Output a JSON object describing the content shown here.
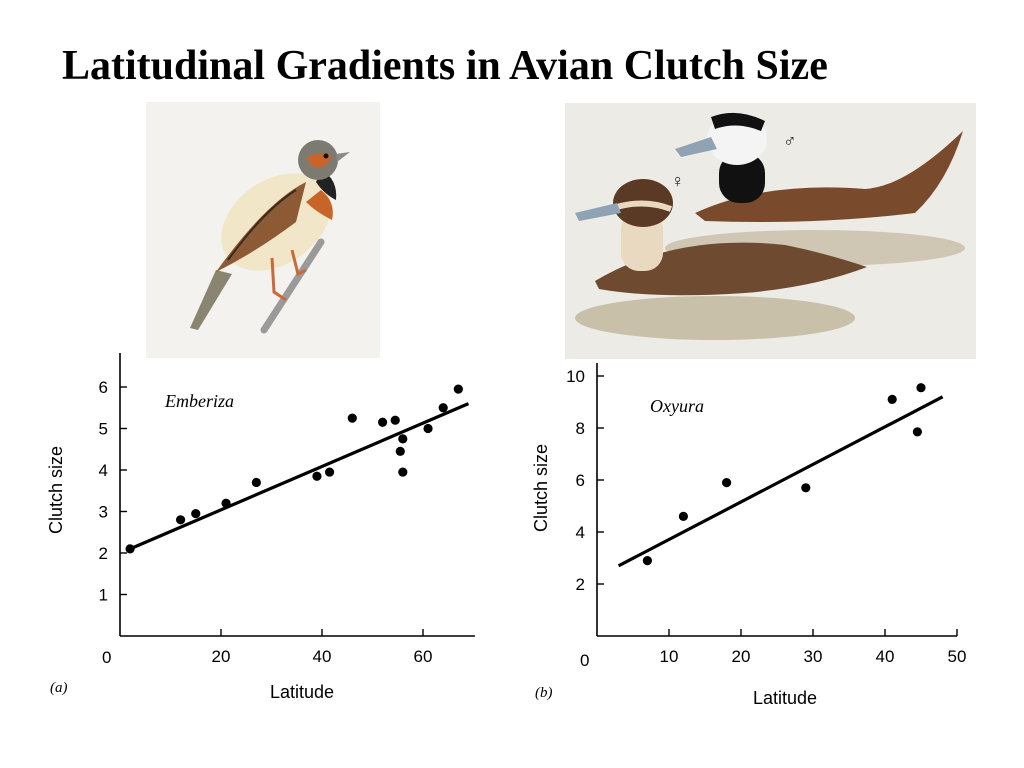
{
  "slide": {
    "title": "Latitudinal Gradients in Avian Clutch Size"
  },
  "illustrations": {
    "bunting": {
      "label": "Emberiza bunting illustration"
    },
    "ducks": {
      "male_symbol": "♂",
      "female_symbol": "♀"
    }
  },
  "colors": {
    "text": "#000000",
    "bunting_orange": "#c8642a",
    "duck_brown": "#7a4a2c",
    "bill_blue": "#8fa3b5",
    "water": "#d9d3c4"
  },
  "chart_data": [
    {
      "type": "scatter",
      "panel_label": "(a)",
      "annotation": "Emberiza",
      "xlabel": "Latitude",
      "ylabel": "Clutch size",
      "xlim": [
        0,
        70
      ],
      "ylim": [
        0,
        7
      ],
      "x_ticks": [
        20,
        40,
        60
      ],
      "y_ticks": [
        1,
        2,
        3,
        4,
        5,
        6
      ],
      "origin_label": "0",
      "points": [
        {
          "x": 2,
          "y": 2.1
        },
        {
          "x": 12,
          "y": 2.8
        },
        {
          "x": 15,
          "y": 2.95
        },
        {
          "x": 21,
          "y": 3.2
        },
        {
          "x": 27,
          "y": 3.7
        },
        {
          "x": 39,
          "y": 3.85
        },
        {
          "x": 41.5,
          "y": 3.95
        },
        {
          "x": 46,
          "y": 5.25
        },
        {
          "x": 52,
          "y": 5.15
        },
        {
          "x": 54.5,
          "y": 5.2
        },
        {
          "x": 55.5,
          "y": 4.45
        },
        {
          "x": 56,
          "y": 4.75
        },
        {
          "x": 56,
          "y": 3.95
        },
        {
          "x": 61,
          "y": 5.0
        },
        {
          "x": 64,
          "y": 5.5
        },
        {
          "x": 67,
          "y": 5.95
        }
      ],
      "trend": {
        "x": [
          2,
          69
        ],
        "y": [
          2.1,
          5.6
        ]
      }
    },
    {
      "type": "scatter",
      "panel_label": "(b)",
      "annotation": "Oxyura",
      "xlabel": "Latitude",
      "ylabel": "Clutch size",
      "xlim": [
        0,
        50
      ],
      "ylim": [
        0,
        10.5
      ],
      "x_ticks": [
        10,
        20,
        30,
        40,
        50
      ],
      "y_ticks": [
        2,
        4,
        6,
        8,
        10
      ],
      "origin_label": "0",
      "points": [
        {
          "x": 7,
          "y": 2.9
        },
        {
          "x": 12,
          "y": 4.6
        },
        {
          "x": 18,
          "y": 5.9
        },
        {
          "x": 29,
          "y": 5.7
        },
        {
          "x": 41,
          "y": 9.1
        },
        {
          "x": 45,
          "y": 9.55
        },
        {
          "x": 44.5,
          "y": 7.85
        }
      ],
      "trend": {
        "x": [
          3,
          48
        ],
        "y": [
          2.7,
          9.2
        ]
      }
    }
  ]
}
